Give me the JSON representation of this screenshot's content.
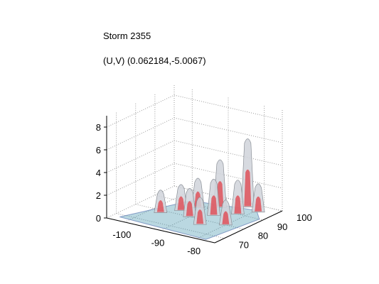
{
  "header": {
    "title": "Storm 2355",
    "subtitle": "(U,V) (0.062184,-5.0067)"
  },
  "chart_data": {
    "type": "surface3d",
    "title": "Storm 2355",
    "subtitle": "(U,V) (0.062184,-5.0067)",
    "xlabel": "",
    "ylabel": "",
    "zlabel": "",
    "xlim": [
      -105,
      -75
    ],
    "ylim": [
      65,
      100
    ],
    "zlim": [
      0,
      9
    ],
    "x_ticks": [
      -100,
      -90,
      -80
    ],
    "y_ticks": [
      70,
      80,
      90,
      100
    ],
    "z_ticks": [
      0,
      2,
      4,
      6,
      8
    ],
    "grid": true,
    "colors": {
      "isosurface_low": "#d0d4da",
      "isosurface_core": "#e0404a",
      "base_field": "#3a8fa8",
      "base_field_dark": "#3050a0"
    },
    "features": [
      {
        "x": -97,
        "y": 78,
        "z": 2.0
      },
      {
        "x": -94,
        "y": 83,
        "z": 2.3
      },
      {
        "x": -92,
        "y": 88,
        "z": 2.6
      },
      {
        "x": -90,
        "y": 80,
        "z": 2.5
      },
      {
        "x": -88,
        "y": 92,
        "z": 4.2
      },
      {
        "x": -86,
        "y": 85,
        "z": 3.2
      },
      {
        "x": -85,
        "y": 76,
        "z": 2.4
      },
      {
        "x": -82,
        "y": 90,
        "z": 3.0
      },
      {
        "x": -80,
        "y": 80,
        "z": 2.2
      },
      {
        "x": -79,
        "y": 95,
        "z": 2.5
      },
      {
        "x": -83,
        "y": 97,
        "z": 6.0
      }
    ]
  }
}
